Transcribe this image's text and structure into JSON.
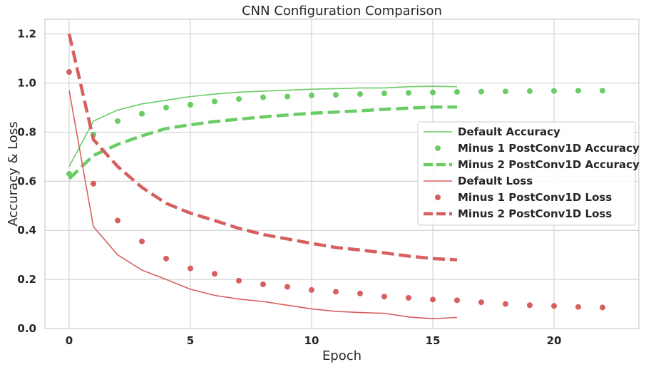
{
  "chart_data": {
    "type": "line",
    "title": "CNN Configuration Comparison",
    "xlabel": "Epoch",
    "ylabel": "Accuracy & Loss",
    "xlim": [
      -1,
      23.5
    ],
    "ylim": [
      0,
      1.26
    ],
    "xticks": [
      0,
      5,
      10,
      15,
      20
    ],
    "yticks": [
      0.0,
      0.2,
      0.4,
      0.6,
      0.8,
      1.0,
      1.2
    ],
    "xtick_labels": [
      "0",
      "5",
      "10",
      "15",
      "20"
    ],
    "ytick_labels": [
      "0.0",
      "0.2",
      "0.4",
      "0.6",
      "0.8",
      "1.0",
      "1.2"
    ],
    "grid": true,
    "legend_position": "center-right",
    "series": [
      {
        "name": "Default Accuracy",
        "style": "line-thin",
        "color": "#6acc64",
        "x": [
          0,
          1,
          2,
          3,
          4,
          5,
          6,
          7,
          8,
          9,
          10,
          11,
          12,
          13,
          14,
          15,
          16
        ],
        "y": [
          0.66,
          0.845,
          0.89,
          0.915,
          0.93,
          0.945,
          0.955,
          0.963,
          0.967,
          0.971,
          0.975,
          0.977,
          0.98,
          0.98,
          0.985,
          0.987,
          0.985
        ]
      },
      {
        "name": "Minus 1 PostConv1D Accuracy",
        "style": "dots",
        "color": "#6acc64",
        "x": [
          0,
          1,
          2,
          3,
          4,
          5,
          6,
          7,
          8,
          9,
          10,
          11,
          12,
          13,
          14,
          15,
          16,
          17,
          18,
          19,
          20,
          21,
          22
        ],
        "y": [
          0.63,
          0.79,
          0.845,
          0.875,
          0.9,
          0.912,
          0.925,
          0.935,
          0.942,
          0.945,
          0.95,
          0.952,
          0.955,
          0.958,
          0.96,
          0.962,
          0.964,
          0.965,
          0.966,
          0.967,
          0.968,
          0.969,
          0.969
        ]
      },
      {
        "name": "Minus 2 PostConv1D Accuracy",
        "style": "dashed",
        "color": "#6acc64",
        "x": [
          0,
          1,
          2,
          3,
          4,
          5,
          6,
          7,
          8,
          9,
          10,
          11,
          12,
          13,
          14,
          15,
          16
        ],
        "y": [
          0.61,
          0.705,
          0.75,
          0.785,
          0.815,
          0.83,
          0.843,
          0.853,
          0.862,
          0.87,
          0.877,
          0.882,
          0.887,
          0.893,
          0.898,
          0.902,
          0.902
        ]
      },
      {
        "name": "Default Loss",
        "style": "line-thin",
        "color": "#d65f5f",
        "x": [
          0,
          1,
          2,
          3,
          4,
          5,
          6,
          7,
          8,
          9,
          10,
          11,
          12,
          13,
          14,
          15,
          16
        ],
        "y": [
          0.97,
          0.415,
          0.3,
          0.238,
          0.2,
          0.16,
          0.135,
          0.12,
          0.11,
          0.095,
          0.08,
          0.07,
          0.065,
          0.062,
          0.047,
          0.04,
          0.045
        ]
      },
      {
        "name": "Minus 1 PostConv1D Loss",
        "style": "dots",
        "color": "#d65f5f",
        "x": [
          0,
          1,
          2,
          3,
          4,
          5,
          6,
          7,
          8,
          9,
          10,
          11,
          12,
          13,
          14,
          15,
          16,
          17,
          18,
          19,
          20,
          21,
          22
        ],
        "y": [
          1.045,
          0.59,
          0.44,
          0.355,
          0.285,
          0.245,
          0.223,
          0.195,
          0.18,
          0.17,
          0.157,
          0.15,
          0.143,
          0.13,
          0.125,
          0.118,
          0.115,
          0.107,
          0.1,
          0.095,
          0.092,
          0.088,
          0.086
        ]
      },
      {
        "name": "Minus 2 PostConv1D Loss",
        "style": "dashed",
        "color": "#d65f5f",
        "x": [
          0,
          1,
          2,
          3,
          4,
          5,
          6,
          7,
          8,
          9,
          10,
          11,
          12,
          13,
          14,
          15,
          16
        ],
        "y": [
          1.2,
          0.77,
          0.66,
          0.575,
          0.51,
          0.47,
          0.44,
          0.408,
          0.383,
          0.365,
          0.347,
          0.33,
          0.32,
          0.308,
          0.295,
          0.285,
          0.28
        ]
      }
    ]
  }
}
